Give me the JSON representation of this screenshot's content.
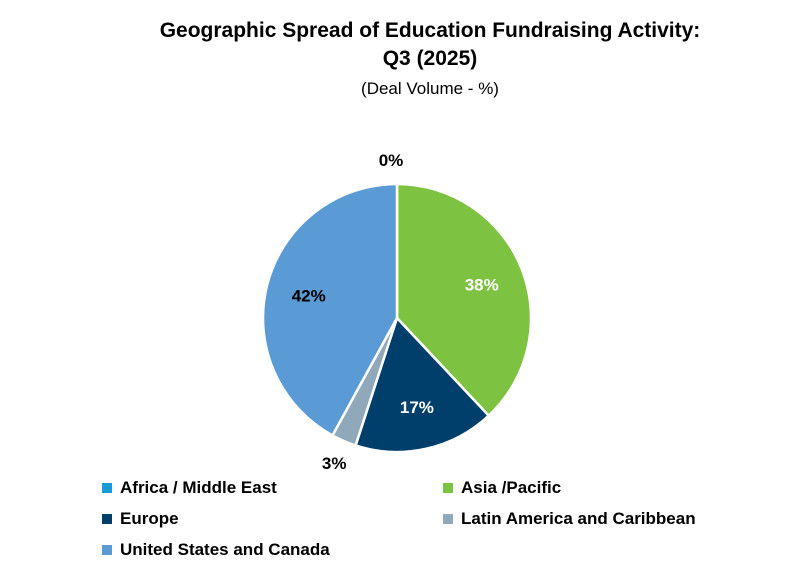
{
  "chart_data": {
    "type": "pie",
    "title_line1": "Geographic Spread of Education Fundraising Activity:",
    "title_line2": "Q3 (2025)",
    "subtitle": "(Deal Volume - %)",
    "start": "12 o'clock, clockwise",
    "slices": [
      {
        "label": "Africa / Middle East",
        "value": 0,
        "display": "0%",
        "color": "#1a9bd7",
        "label_color": "#000000"
      },
      {
        "label": "Asia /Pacific",
        "value": 38,
        "display": "38%",
        "color": "#7ec242",
        "label_color": "#ffffff"
      },
      {
        "label": "Europe",
        "value": 17,
        "display": "17%",
        "color": "#003f6b",
        "label_color": "#ffffff"
      },
      {
        "label": "Latin America and Caribbean",
        "value": 3,
        "display": "3%",
        "color": "#8fa9ba",
        "label_color": "#000000"
      },
      {
        "label": "United States and Canada",
        "value": 42,
        "display": "42%",
        "color": "#5b9bd5",
        "label_color": "#000000"
      }
    ],
    "legend_placement": "bottom"
  }
}
